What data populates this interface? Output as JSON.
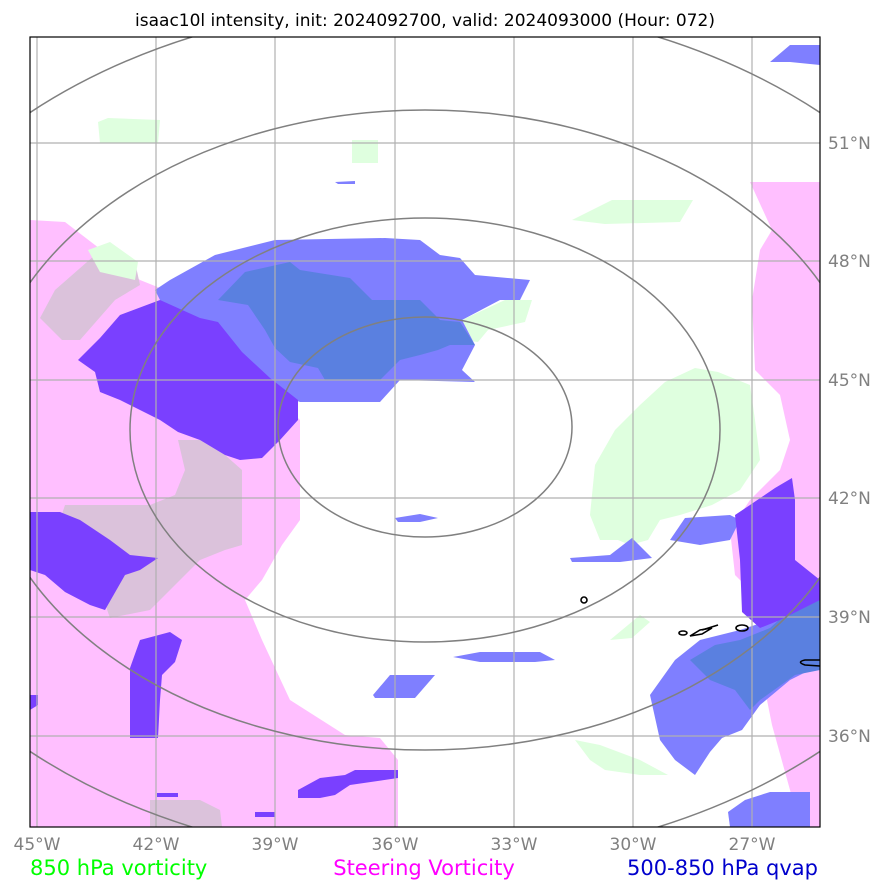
{
  "title": "isaac10l intensity, init: 2024092700, valid: 2024093000 (Hour: 072)",
  "map": {
    "lon_labels": [
      "45°W",
      "42°W",
      "39°W",
      "36°W",
      "33°W",
      "30°W",
      "27°W"
    ],
    "lat_labels": [
      "51°N",
      "48°N",
      "45°N",
      "42°N",
      "39°N",
      "36°N"
    ],
    "grid": true,
    "range_rings": 4
  },
  "legend": {
    "items": [
      {
        "label": "850 hPa vorticity",
        "color": "#00ff00"
      },
      {
        "label": "Steering Vorticity",
        "color": "#ff00ff"
      },
      {
        "label": "500-850 hPa qvap",
        "color": "#0000cc"
      }
    ]
  },
  "colors": {
    "vorticity_850": "#dfffdf",
    "steering_vorticity": "#ffbfff",
    "qvap_light": "#7f7fff",
    "qvap_dark": "#7a40ff",
    "overlap_steer_850": "#dbc2db",
    "overlap_qvap_850": "#5a80e0"
  }
}
